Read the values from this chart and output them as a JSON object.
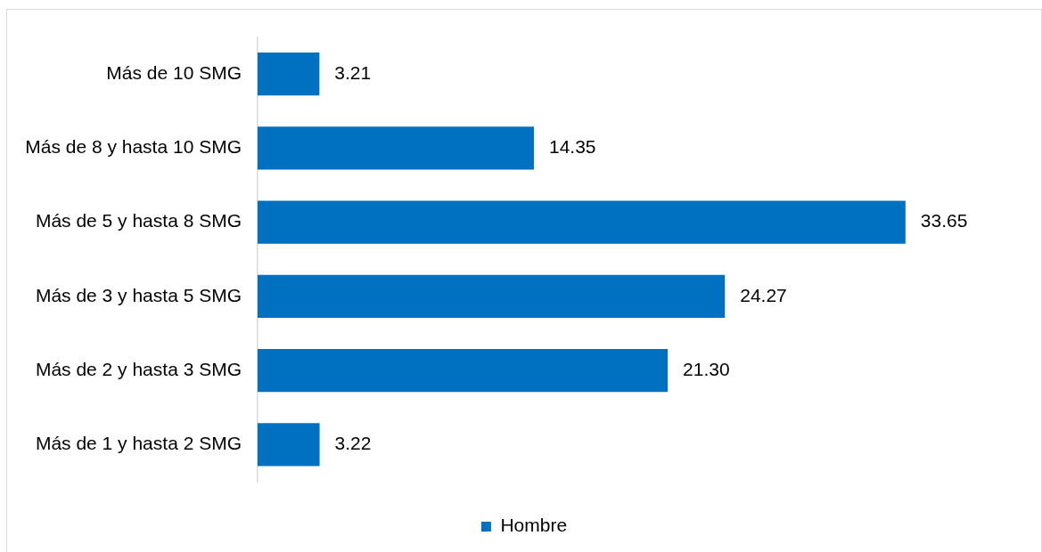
{
  "chart_data": {
    "type": "bar",
    "orientation": "horizontal",
    "categories": [
      "Más de 10 SMG",
      "Más de 8 y hasta 10 SMG",
      "Más de 5 y hasta 8 SMG",
      "Más de 3 y hasta 5 SMG",
      "Más de 2 y hasta 3 SMG",
      "Más de 1 y hasta 2 SMG"
    ],
    "series": [
      {
        "name": "Hombre",
        "color": "#0070c0",
        "values": [
          3.21,
          14.35,
          33.65,
          24.27,
          21.3,
          3.22
        ],
        "value_labels": [
          "3.21",
          "14.35",
          "33.65",
          "24.27",
          "21.30",
          "3.22"
        ]
      }
    ],
    "legend": "bottom",
    "tick_labels": "y"
  }
}
